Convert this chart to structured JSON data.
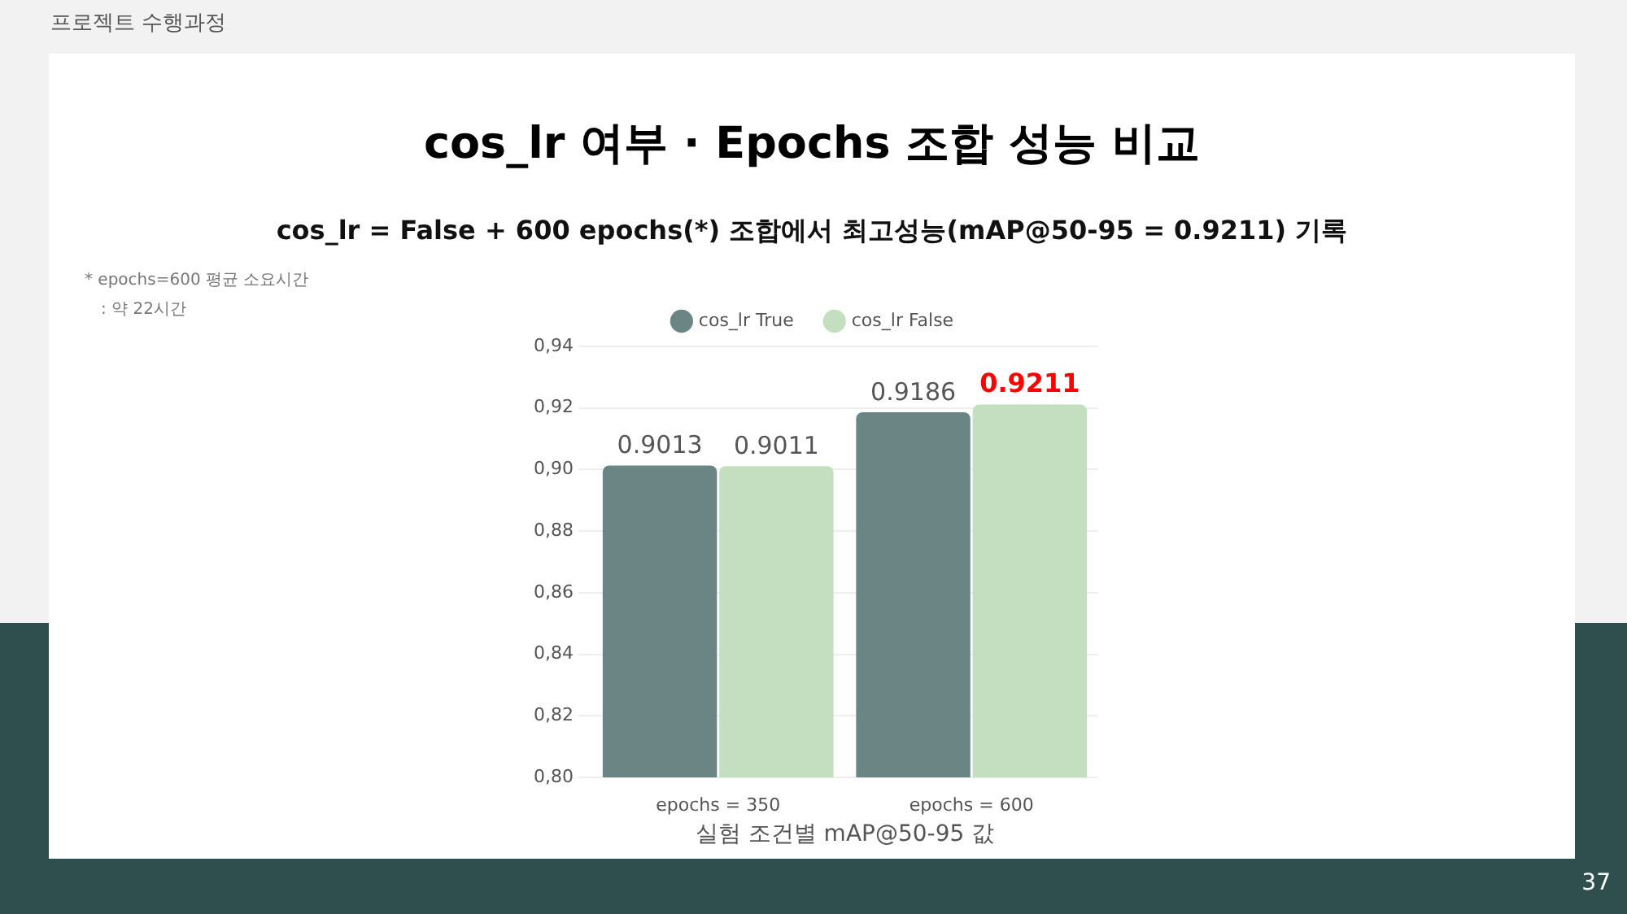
{
  "chart_data": {
    "type": "bar",
    "title": "cos_lr 여부 · Epochs 조합 성능 비교",
    "subtitle": "cos_lr = False + 600 epochs(*) 조합에서 최고성능(mAP@50-95 = 0.9211) 기록",
    "xlabel": "실험 조건별 mAP@50-95 값",
    "categories": [
      "epochs = 350",
      "epochs = 600"
    ],
    "series": [
      {
        "name": "cos_lr True",
        "color": "#6b8585",
        "values": [
          0.9013,
          0.9186
        ]
      },
      {
        "name": "cos_lr False",
        "color": "#c3dfc0",
        "values": [
          0.9011,
          0.9211
        ]
      }
    ],
    "ylim": [
      0.8,
      0.94
    ],
    "yticks": [
      {
        "value": 0.8,
        "label": "0,80"
      },
      {
        "value": 0.82,
        "label": "0,82"
      },
      {
        "value": 0.84,
        "label": "0,84"
      },
      {
        "value": 0.86,
        "label": "0,86"
      },
      {
        "value": 0.88,
        "label": "0,88"
      },
      {
        "value": 0.9,
        "label": "0,90"
      },
      {
        "value": 0.92,
        "label": "0,92"
      },
      {
        "value": 0.94,
        "label": "0,94"
      }
    ],
    "grid": "y",
    "legend": "top",
    "data_labels": true,
    "annotations": [
      "프로젝트 수행과정",
      "* epochs=600 평균 소요시간",
      ": 약 22시간",
      "37"
    ]
  }
}
